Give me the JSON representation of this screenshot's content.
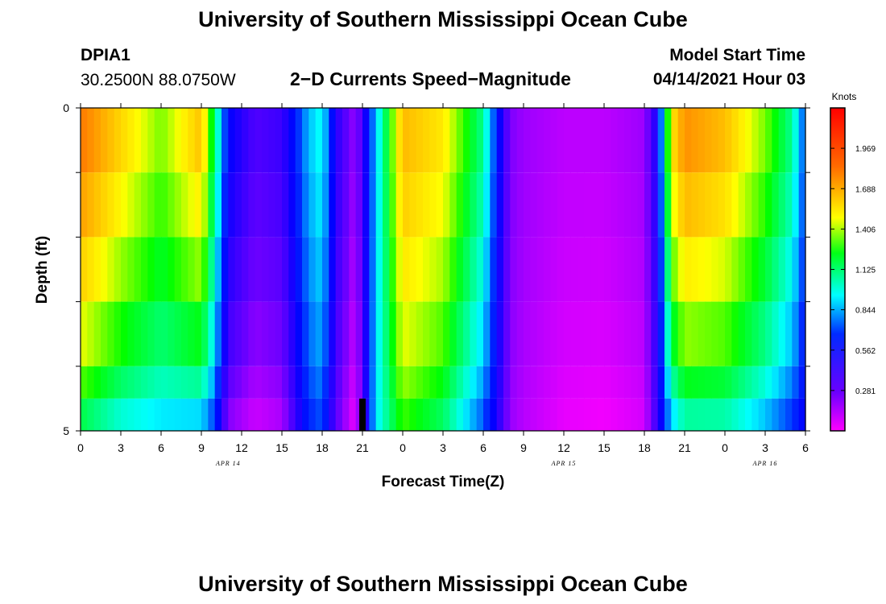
{
  "page": {
    "title_top": "University of Southern Mississippi Ocean Cube",
    "title_bottom": "University of Southern Mississippi Ocean Cube"
  },
  "header": {
    "station_id": "DPIA1",
    "coordinates": "30.2500N  88.0750W",
    "chart_title": "2−D Currents Speed−Magnitude",
    "model_label": "Model Start Time",
    "model_time": "04/14/2021 Hour 03"
  },
  "chart_data": {
    "type": "heatmap",
    "title": "2-D Currents Speed-Magnitude",
    "xlabel": "Forecast Time(Z)",
    "ylabel": "Depth (ft)",
    "units_label": "Knots",
    "xlim": [
      0,
      54
    ],
    "ylim": [
      0,
      5
    ],
    "y_ticks": [
      "0",
      "5"
    ],
    "x_tick_hours": [
      0,
      3,
      6,
      9,
      12,
      15,
      18,
      21,
      24,
      27,
      30,
      33,
      36,
      39,
      42,
      45,
      48,
      51,
      54
    ],
    "x_tick_labels": [
      "0",
      "3",
      "6",
      "9",
      "12",
      "15",
      "18",
      "21",
      "0",
      "3",
      "6",
      "9",
      "12",
      "15",
      "18",
      "21",
      "0",
      "3",
      "6"
    ],
    "date_labels": [
      {
        "hour": 11,
        "text": "APR 14"
      },
      {
        "hour": 36,
        "text": "APR 15"
      },
      {
        "hour": 51,
        "text": "APR 16"
      }
    ],
    "model_start_marker_hour": 21,
    "depth_layers": [
      "0-1 ft",
      "1-2 ft",
      "2-3 ft",
      "3-4 ft",
      "4-4.5 ft",
      "4.5-5 ft"
    ],
    "colorbar": {
      "min": 0.14,
      "max": 2.11,
      "ticks": [
        "0.281",
        "0.562",
        "0.844",
        "1.125",
        "1.406",
        "1.688",
        "1.969"
      ]
    },
    "profile": {
      "hours": [
        0,
        3,
        6,
        9,
        10,
        11,
        13,
        15,
        17,
        18,
        19,
        20.5,
        22,
        24,
        27,
        30,
        31,
        32,
        33,
        36,
        39,
        42,
        43,
        44,
        45,
        48,
        51,
        53,
        54
      ],
      "surface_knots": [
        1.75,
        1.55,
        1.35,
        1.6,
        1.15,
        0.65,
        0.45,
        0.5,
        0.9,
        1.0,
        0.55,
        0.3,
        0.9,
        1.6,
        1.5,
        1.1,
        0.7,
        0.35,
        0.3,
        0.25,
        0.25,
        0.3,
        0.6,
        1.5,
        1.7,
        1.6,
        1.35,
        1.1,
        0.75
      ],
      "bottom_knots": [
        1.1,
        0.95,
        0.9,
        0.85,
        0.7,
        0.3,
        0.2,
        0.25,
        0.7,
        0.75,
        0.4,
        0.15,
        0.95,
        1.25,
        1.1,
        0.75,
        0.55,
        0.3,
        0.25,
        0.17,
        0.15,
        0.2,
        0.5,
        0.85,
        1.0,
        1.0,
        0.85,
        0.7,
        0.6
      ]
    }
  }
}
